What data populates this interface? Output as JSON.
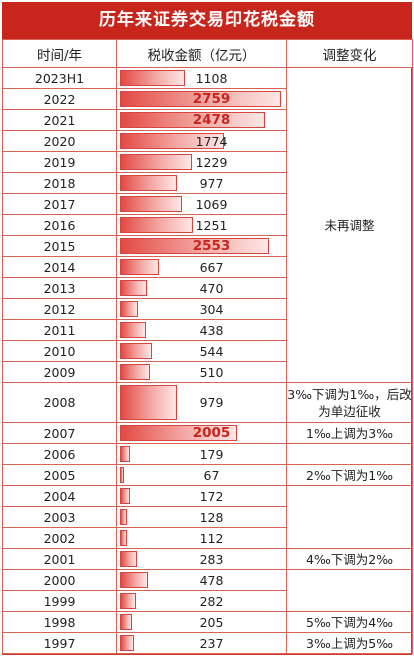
{
  "title": "历年来证券交易印花税金额",
  "headers": {
    "year": "时间/年",
    "value": "税收金额（亿元）",
    "change": "调整变化"
  },
  "max_value": 2759,
  "rows": [
    {
      "year": "2023H1",
      "value": "1108",
      "amount": 1108,
      "highlight": false
    },
    {
      "year": "2022",
      "value": "2759",
      "amount": 2759,
      "highlight": true
    },
    {
      "year": "2021",
      "value": "2478",
      "amount": 2478,
      "highlight": true
    },
    {
      "year": "2020",
      "value": "1774",
      "amount": 1774,
      "highlight": false
    },
    {
      "year": "2019",
      "value": "1229",
      "amount": 1229,
      "highlight": false
    },
    {
      "year": "2018",
      "value": "977",
      "amount": 977,
      "highlight": false
    },
    {
      "year": "2017",
      "value": "1069",
      "amount": 1069,
      "highlight": false
    },
    {
      "year": "2016",
      "value": "1251",
      "amount": 1251,
      "highlight": false
    },
    {
      "year": "2015",
      "value": "2553",
      "amount": 2553,
      "highlight": true
    },
    {
      "year": "2014",
      "value": "667",
      "amount": 667,
      "highlight": false
    },
    {
      "year": "2013",
      "value": "470",
      "amount": 470,
      "highlight": false
    },
    {
      "year": "2012",
      "value": "304",
      "amount": 304,
      "highlight": false
    },
    {
      "year": "2011",
      "value": "438",
      "amount": 438,
      "highlight": false
    },
    {
      "year": "2010",
      "value": "544",
      "amount": 544,
      "highlight": false
    },
    {
      "year": "2009",
      "value": "510",
      "amount": 510,
      "highlight": false
    },
    {
      "year": "2008",
      "value": "979",
      "amount": 979,
      "highlight": false
    },
    {
      "year": "2007",
      "value": "2005",
      "amount": 2005,
      "highlight": true
    },
    {
      "year": "2006",
      "value": "179",
      "amount": 179,
      "highlight": false
    },
    {
      "year": "2005",
      "value": "67",
      "amount": 67,
      "highlight": false
    },
    {
      "year": "2004",
      "value": "172",
      "amount": 172,
      "highlight": false
    },
    {
      "year": "2003",
      "value": "128",
      "amount": 128,
      "highlight": false
    },
    {
      "year": "2002",
      "value": "112",
      "amount": 112,
      "highlight": false
    },
    {
      "year": "2001",
      "value": "283",
      "amount": 283,
      "highlight": false
    },
    {
      "year": "2000",
      "value": "478",
      "amount": 478,
      "highlight": false
    },
    {
      "year": "1999",
      "value": "282",
      "amount": 282,
      "highlight": false
    },
    {
      "year": "1998",
      "value": "205",
      "amount": 205,
      "highlight": false
    },
    {
      "year": "1997",
      "value": "237",
      "amount": 237,
      "highlight": false
    }
  ],
  "notes": {
    "no_change": "未再调整",
    "n2008": "3‰下调为1‰，后改为单边征收",
    "n2007": "1‰上调为3‰",
    "n2005": "2‰下调为1‰",
    "n2001": "4‰下调为2‰",
    "n1998": "5‰下调为4‰",
    "n1997": "3‰上调为5‰"
  },
  "colors": {
    "accent": "#c8251c",
    "border": "#d96257"
  }
}
